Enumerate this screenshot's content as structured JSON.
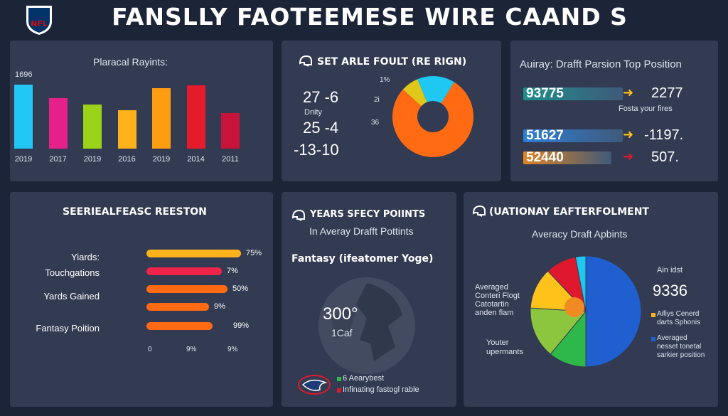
{
  "header": {
    "logo_text": "NFL",
    "title": "FANSLLY FAOTEEMESE WIRE CAAND S"
  },
  "colors": {
    "background": "#1c2437",
    "panel": "#323b52",
    "orange": "#ff6a13",
    "cyan": "#1ec8f0",
    "yellow": "#ffd21a",
    "red": "#e0182d",
    "blue": "#1f5fd0",
    "green": "#2fb84a"
  },
  "panel_bar_chart": {
    "title": "Plaracal Rayints:",
    "ytop_label": "1696",
    "chart_data": {
      "type": "bar",
      "categories": [
        "2019",
        "2017",
        "2019",
        "2016",
        "2019",
        "2014",
        "2011"
      ],
      "values": [
        95,
        75,
        65,
        57,
        90,
        94,
        53
      ],
      "ylim": [
        0,
        100
      ],
      "colors": [
        "#22c8f5",
        "#e5208a",
        "#9ad318",
        "#ffb21c",
        "#ff9d12",
        "#e51b2b",
        "#c8143a"
      ]
    }
  },
  "panel_donut_top": {
    "title": "SET ARLE FOULT (RE RIGN)",
    "stats": [
      {
        "value": "27 -6",
        "sub": "Dnity"
      },
      {
        "value": "25 -4",
        "sub": ""
      },
      {
        "value": "-13-10",
        "sub": ""
      }
    ],
    "slice_labels": [
      "1%",
      "2i",
      "36"
    ],
    "chart_data": {
      "type": "pie",
      "slices": [
        {
          "value": 78,
          "color": "#ff6a13"
        },
        {
          "value": 7,
          "color": "#e0c81a"
        },
        {
          "value": 15,
          "color": "#1ec8f0"
        }
      ]
    }
  },
  "panel_adp": {
    "title": "Auiray: Drafft Parsion Top Position",
    "rows": [
      {
        "bar_value": "93775",
        "bar_color": "#1e8e8e",
        "fill": 0.62,
        "result": "2277",
        "arrow_color": "#ffc21a",
        "note": "Fosta your fires"
      },
      {
        "bar_value": "51627",
        "bar_color": "#2d7fd8",
        "fill": 0.62,
        "result": "-1197.",
        "arrow_color": "#ffc21a",
        "note": ""
      },
      {
        "bar_value": "52440",
        "bar_color": "#e08422",
        "fill": 0.55,
        "result": "507.",
        "arrow_color": "#e0182d",
        "note": ""
      }
    ]
  },
  "panel_hbars": {
    "title": "SEERIEALFEASC REESTON",
    "rows": [
      {
        "label": "Yiards:",
        "pct": "75%",
        "fill": 1.0,
        "color": "#ffb21a"
      },
      {
        "label": "Touchgations",
        "pct": "7%",
        "fill": 0.8,
        "color": "#f0244a"
      },
      {
        "label": "Yards Gained",
        "pct": "50%",
        "fill": 0.86,
        "color": "#ff6a13"
      },
      {
        "label": "",
        "pct": "9%",
        "fill": 0.66,
        "color": "#ff6a13"
      },
      {
        "label": "Fantasy Poition",
        "pct": "99%",
        "fill": 0.7,
        "color": "#ff6a13"
      }
    ],
    "axis": [
      "0",
      "9%",
      "9%"
    ]
  },
  "panel_globe": {
    "title": "YEARS SFECY POIINTS",
    "subtitle": "In Averay Drafft Pottints",
    "heading": "Fantasy (ifeatomer Yoge)",
    "center_value": "300°",
    "center_sub": "1Caf",
    "legend_line1": "6 Aearybest",
    "legend_line2": "Infinating fastogl rable"
  },
  "panel_pie": {
    "title": "(UATIONAY EAFTERFOLMENT",
    "subtitle": "Averacy Draft Apbints",
    "left_label": "Averaged\nConteri Flogt\nCatotartin\nanden flam",
    "left_label_2": "Youter\nupermants",
    "right_top": "Ain idst",
    "right_value": "9336",
    "legend": [
      {
        "color": "#ffb21a",
        "text": "Aifiys Cenerd\ndarts Sphonis"
      },
      {
        "color": "#1f5fd0",
        "text": "Averaged\nnesset tonetal\nsarkier position"
      }
    ],
    "chart_data": {
      "type": "pie",
      "slices": [
        {
          "value": 50,
          "color": "#1f5fd0"
        },
        {
          "value": 11,
          "color": "#2fb84a"
        },
        {
          "value": 15,
          "color": "#8cc63f"
        },
        {
          "value": 12,
          "color": "#ffc21a"
        },
        {
          "value": 9,
          "color": "#e0182d"
        },
        {
          "value": 3,
          "color": "#1ec8f0"
        }
      ]
    }
  }
}
